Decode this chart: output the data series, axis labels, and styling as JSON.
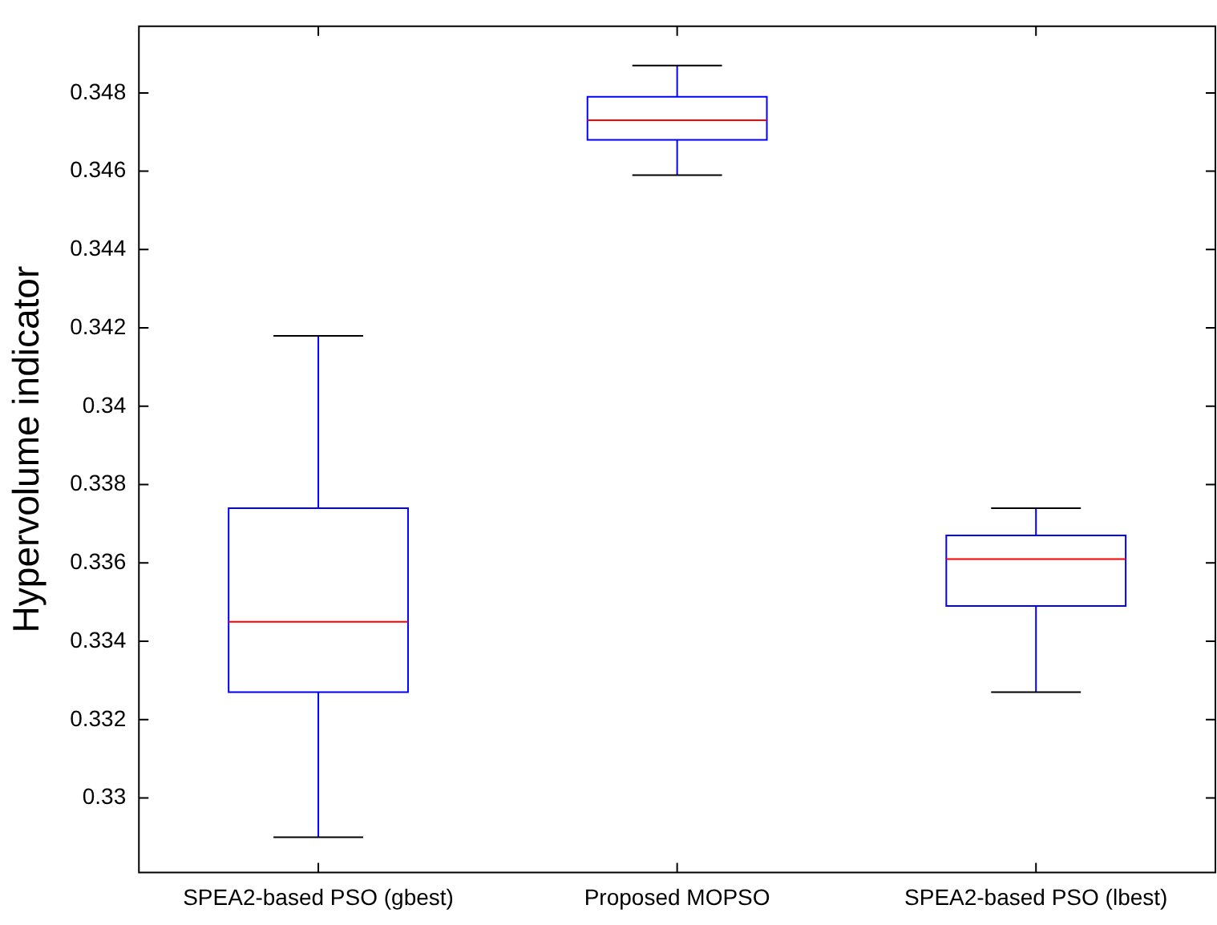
{
  "chart_data": {
    "type": "box",
    "ylabel": "Hypervolume indicator",
    "categories": [
      "SPEA2-based PSO (gbest)",
      "Proposed MOPSO",
      "SPEA2-based PSO (lbest)"
    ],
    "series": [
      {
        "color": "#0000ff",
        "boxes": [
          {
            "low": 0.329,
            "q1": 0.3327,
            "median": 0.3345,
            "q3": 0.3374,
            "high": 0.3418
          },
          {
            "low": 0.3459,
            "q1": 0.3468,
            "median": 0.3473,
            "q3": 0.3479,
            "high": 0.3487
          },
          {
            "low": 0.3327,
            "q1": 0.3349,
            "median": 0.3361,
            "q3": 0.3367,
            "high": 0.3374
          }
        ]
      }
    ],
    "ylim": [
      0.3281,
      0.3497
    ],
    "yticks": [
      0.33,
      0.332,
      0.334,
      0.336,
      0.338,
      0.34,
      0.342,
      0.344,
      0.346,
      0.348
    ],
    "grid": false,
    "legend": false
  }
}
